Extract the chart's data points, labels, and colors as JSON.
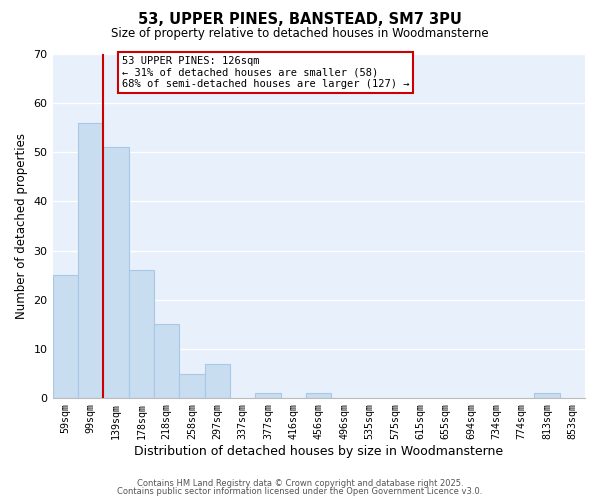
{
  "title": "53, UPPER PINES, BANSTEAD, SM7 3PU",
  "subtitle": "Size of property relative to detached houses in Woodmansterne",
  "xlabel": "Distribution of detached houses by size in Woodmansterne",
  "ylabel": "Number of detached properties",
  "bin_labels": [
    "59sqm",
    "99sqm",
    "139sqm",
    "178sqm",
    "218sqm",
    "258sqm",
    "297sqm",
    "337sqm",
    "377sqm",
    "416sqm",
    "456sqm",
    "496sqm",
    "535sqm",
    "575sqm",
    "615sqm",
    "655sqm",
    "694sqm",
    "734sqm",
    "774sqm",
    "813sqm",
    "853sqm"
  ],
  "bar_heights": [
    25,
    56,
    51,
    26,
    15,
    5,
    7,
    0,
    1,
    0,
    1,
    0,
    0,
    0,
    0,
    0,
    0,
    0,
    0,
    1,
    0
  ],
  "bar_color": "#c9ddf0",
  "bar_edge_color": "#a8c8e8",
  "vline_color": "#cc0000",
  "ylim": [
    0,
    70
  ],
  "yticks": [
    0,
    10,
    20,
    30,
    40,
    50,
    60,
    70
  ],
  "annotation_title": "53 UPPER PINES: 126sqm",
  "annotation_line1": "← 31% of detached houses are smaller (58)",
  "annotation_line2": "68% of semi-detached houses are larger (127) →",
  "annotation_box_color": "#ffffff",
  "annotation_box_edge": "#cc0000",
  "footer_line1": "Contains HM Land Registry data © Crown copyright and database right 2025.",
  "footer_line2": "Contains public sector information licensed under the Open Government Licence v3.0.",
  "background_color": "#ffffff",
  "plot_background": "#e8f0fb",
  "grid_color": "#ffffff"
}
